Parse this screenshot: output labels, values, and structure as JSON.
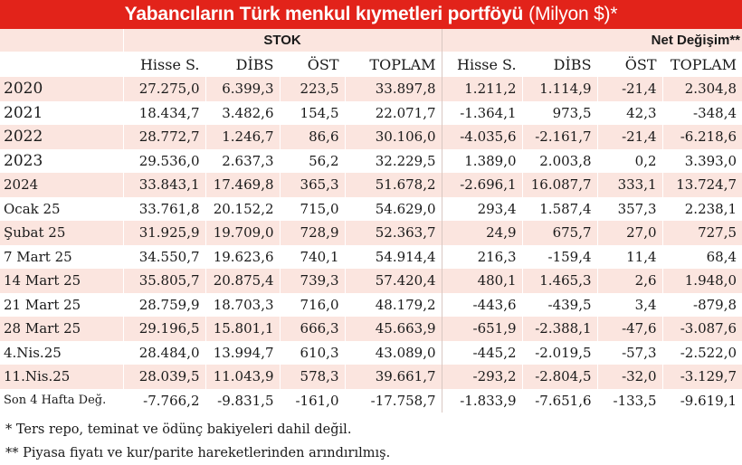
{
  "title": {
    "main": "Yabancıların Türk menkul kıymetleri portföyü",
    "unit": "(Milyon $)*"
  },
  "groups": {
    "stok": "STOK",
    "net": "Net Değişim**"
  },
  "columns": [
    "Hisse S.",
    "DİBS",
    "ÖST",
    "TOPLAM",
    "Hisse S.",
    "DİBS",
    "ÖST",
    "TOPLAM"
  ],
  "rows": [
    {
      "label": "2020",
      "values": [
        "27.275,0",
        "6.399,3",
        "223,5",
        "33.897,8",
        "1.211,2",
        "1.114,9",
        "-21,4",
        "2.304,8"
      ]
    },
    {
      "label": "2021",
      "values": [
        "18.434,7",
        "3.482,6",
        "154,5",
        "22.071,7",
        "-1.364,1",
        "973,5",
        "42,3",
        "-348,4"
      ]
    },
    {
      "label": "2022",
      "values": [
        "28.772,7",
        "1.246,7",
        "86,6",
        "30.106,0",
        "-4.035,6",
        "-2.161,7",
        "-21,4",
        "-6.218,6"
      ]
    },
    {
      "label": "2023",
      "values": [
        "29.536,0",
        "2.637,3",
        "56,2",
        "32.229,5",
        "1.389,0",
        "2.003,8",
        "0,2",
        "3.393,0"
      ]
    },
    {
      "label": "2024",
      "values": [
        "33.843,1",
        "17.469,8",
        "365,3",
        "51.678,2",
        "-2.696,1",
        "16.087,7",
        "333,1",
        "13.724,7"
      ]
    },
    {
      "label": "Ocak 25",
      "values": [
        "33.761,8",
        "20.152,2",
        "715,0",
        "54.629,0",
        "293,4",
        "1.587,4",
        "357,3",
        "2.238,1"
      ]
    },
    {
      "label": "Şubat 25",
      "values": [
        "31.925,9",
        "19.709,0",
        "728,9",
        "52.363,7",
        "24,9",
        "675,7",
        "27,0",
        "727,5"
      ]
    },
    {
      "label": "7 Mart 25",
      "values": [
        "34.550,7",
        "19.623,6",
        "740,1",
        "54.914,4",
        "216,3",
        "-159,4",
        "11,4",
        "68,4"
      ]
    },
    {
      "label": "14 Mart 25",
      "values": [
        "35.805,7",
        "20.875,4",
        "739,3",
        "57.420,4",
        "480,1",
        "1.465,3",
        "2,6",
        "1.948,0"
      ]
    },
    {
      "label": "21 Mart 25",
      "values": [
        "28.759,9",
        "18.703,3",
        "716,0",
        "48.179,2",
        "-443,6",
        "-439,5",
        "3,4",
        "-879,8"
      ]
    },
    {
      "label": "28 Mart 25",
      "values": [
        "29.196,5",
        "15.801,1",
        "666,3",
        "45.663,9",
        "-651,9",
        "-2.388,1",
        "-47,6",
        "-3.087,6"
      ]
    },
    {
      "label": "4.Nis.25",
      "values": [
        "28.484,0",
        "13.994,7",
        "610,3",
        "43.089,0",
        "-445,2",
        "-2.019,5",
        "-57,3",
        "-2.522,0"
      ]
    },
    {
      "label": "11.Nis.25",
      "values": [
        "28.039,5",
        "11.043,9",
        "578,3",
        "39.661,7",
        "-293,2",
        "-2.804,5",
        "-32,0",
        "-3.129,7"
      ]
    },
    {
      "label": "Son 4 Hafta Değ.",
      "values": [
        "-7.766,2",
        "-9.831,5",
        "-161,0",
        "-17.758,7",
        "-1.833,9",
        "-7.651,6",
        "-133,5",
        "-9.619,1"
      ]
    }
  ],
  "notes": [
    "* Ters repo, teminat ve ödünç bakiyeleri dahil değil.",
    "** Piyasa fiyatı ve kur/parite hareketlerinden arındırılmış."
  ],
  "colors": {
    "title_bg": "#e2231a",
    "stripe": "#fbe5df"
  }
}
